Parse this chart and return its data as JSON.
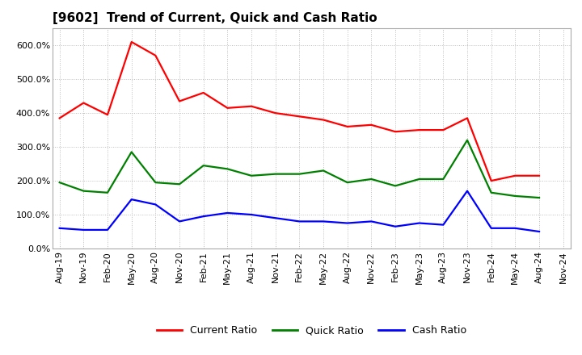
{
  "title": "[9602]  Trend of Current, Quick and Cash Ratio",
  "x_labels": [
    "Aug-19",
    "Nov-19",
    "Feb-20",
    "May-20",
    "Aug-20",
    "Nov-20",
    "Feb-21",
    "May-21",
    "Aug-21",
    "Nov-21",
    "Feb-22",
    "May-22",
    "Aug-22",
    "Nov-22",
    "Feb-23",
    "May-23",
    "Aug-23",
    "Nov-23",
    "Feb-24",
    "May-24",
    "Aug-24",
    "Nov-24"
  ],
  "current_ratio": [
    385,
    430,
    395,
    610,
    570,
    435,
    460,
    415,
    420,
    400,
    390,
    380,
    360,
    365,
    345,
    350,
    350,
    385,
    200,
    215,
    215,
    null
  ],
  "quick_ratio": [
    195,
    170,
    165,
    285,
    195,
    190,
    245,
    235,
    215,
    220,
    220,
    230,
    195,
    205,
    185,
    205,
    205,
    320,
    165,
    155,
    150,
    null
  ],
  "cash_ratio": [
    60,
    55,
    55,
    145,
    130,
    80,
    95,
    105,
    100,
    90,
    80,
    80,
    75,
    80,
    65,
    75,
    70,
    170,
    60,
    60,
    50,
    null
  ],
  "current_color": "#FF0000",
  "quick_color": "#008000",
  "cash_color": "#0000FF",
  "ylim": [
    0,
    650
  ],
  "yticks": [
    0,
    100,
    200,
    300,
    400,
    500,
    600
  ],
  "background_color": "#FFFFFF",
  "grid_color": "#BBBBBB",
  "title_fontsize": 11,
  "legend_fontsize": 9,
  "tick_fontsize": 8,
  "linewidth": 1.6
}
